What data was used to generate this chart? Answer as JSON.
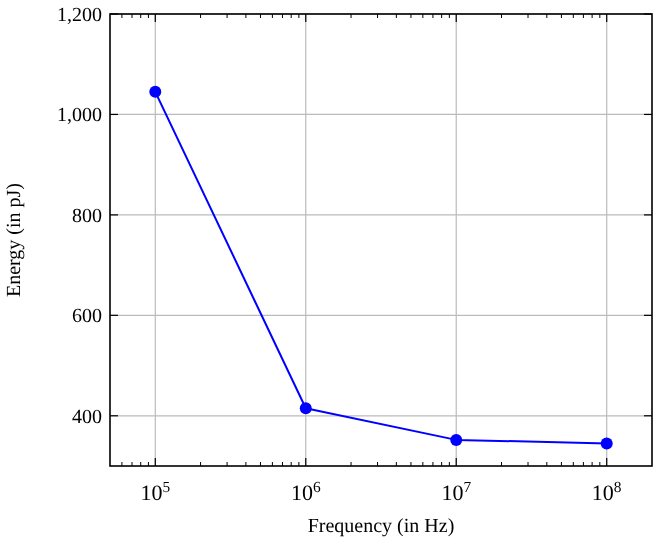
{
  "chart_data": {
    "type": "line",
    "xlabel": "Frequency (in Hz)",
    "ylabel": "Energy (in pJ)",
    "log": "x",
    "x": [
      100000,
      1000000,
      10000000,
      100000000
    ],
    "series": [
      {
        "color": "#0000ff",
        "values": [
          1045,
          415,
          352,
          345
        ]
      }
    ],
    "xlim": [
      50000,
      200000000
    ],
    "xticks": [
      {
        "value": 100000,
        "label": "10$^{5}$"
      },
      {
        "value": 1000000,
        "label": "10$^{6}$"
      },
      {
        "value": 10000000,
        "label": "10$^{7}$"
      },
      {
        "value": 100000000,
        "label": "10$^{8}$"
      }
    ],
    "ylim": [
      300,
      1200
    ],
    "yticks": [
      400,
      600,
      800,
      {
        "value": 1000,
        "label": "1,000"
      },
      {
        "value": 1200,
        "label": "1,200"
      }
    ],
    "grid": true,
    "marker": "circle",
    "line_style": "solid"
  }
}
